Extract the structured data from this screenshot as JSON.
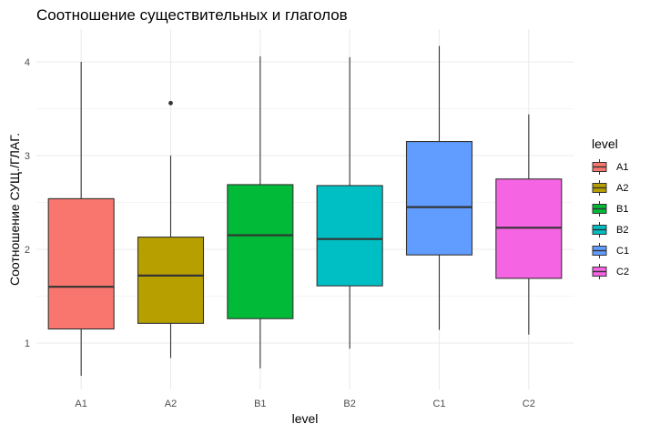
{
  "title": "Соотношение существительных и глаголов",
  "xlabel": "level",
  "ylabel": "Соотношение СУЩ./ГЛАГ.",
  "legend": {
    "title": "level",
    "items": [
      {
        "label": "A1",
        "color": "#F8766D"
      },
      {
        "label": "A2",
        "color": "#B79F00"
      },
      {
        "label": "B1",
        "color": "#00BA38"
      },
      {
        "label": "B2",
        "color": "#00BFC4"
      },
      {
        "label": "C1",
        "color": "#619CFF"
      },
      {
        "label": "C2",
        "color": "#F564E3"
      }
    ]
  },
  "chart_data": {
    "type": "boxplot",
    "title": "Соотношение существительных и глаголов",
    "xlabel": "level",
    "ylabel": "Соотношение СУЩ./ГЛАГ.",
    "categories": [
      "A1",
      "A2",
      "B1",
      "B2",
      "C1",
      "C2"
    ],
    "y_ticks": [
      1,
      2,
      3,
      4
    ],
    "ylim": [
      0.5,
      4.35
    ],
    "grid": true,
    "legend_position": "right",
    "series": [
      {
        "name": "A1",
        "min": 0.65,
        "q1": 1.15,
        "median": 1.6,
        "q3": 2.54,
        "max": 4.0,
        "outliers": [],
        "color": "#F8766D"
      },
      {
        "name": "A2",
        "min": 0.84,
        "q1": 1.21,
        "median": 1.72,
        "q3": 2.13,
        "max": 3.0,
        "outliers": [
          3.56
        ],
        "color": "#B79F00"
      },
      {
        "name": "B1",
        "min": 0.73,
        "q1": 1.26,
        "median": 2.15,
        "q3": 2.69,
        "max": 4.06,
        "outliers": [],
        "color": "#00BA38"
      },
      {
        "name": "B2",
        "min": 0.94,
        "q1": 1.61,
        "median": 2.11,
        "q3": 2.68,
        "max": 4.05,
        "outliers": [],
        "color": "#00BFC4"
      },
      {
        "name": "C1",
        "min": 1.14,
        "q1": 1.94,
        "median": 2.45,
        "q3": 3.15,
        "max": 4.17,
        "outliers": [],
        "color": "#619CFF"
      },
      {
        "name": "C2",
        "min": 1.09,
        "q1": 1.69,
        "median": 2.23,
        "q3": 2.75,
        "max": 3.44,
        "outliers": [],
        "color": "#F564E3"
      }
    ]
  }
}
